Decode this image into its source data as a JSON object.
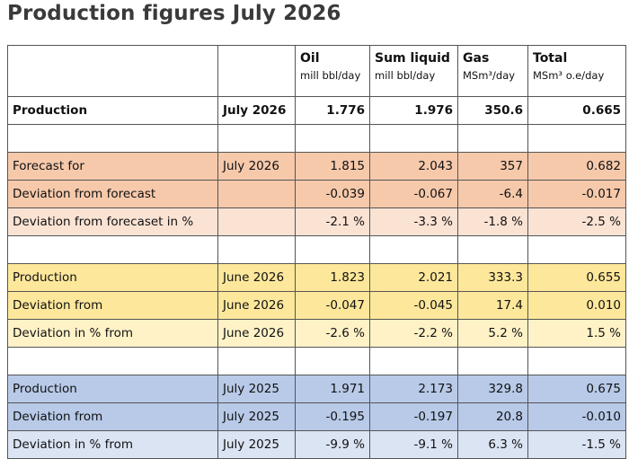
{
  "title": "Production figures July 2026",
  "header": {
    "columns": [
      {
        "name": "Oil",
        "unit": "mill bbl/day"
      },
      {
        "name": "Sum liquid",
        "unit": "mill bbl/day"
      },
      {
        "name": "Gas",
        "unit": "MSm³/day"
      },
      {
        "name": "Total",
        "unit": "MSm³ o.e/day"
      }
    ]
  },
  "rows": [
    {
      "label": "Production",
      "period": "July 2026",
      "oil": "1.776",
      "liquid": "1.976",
      "gas": "350.6",
      "total": "0.665"
    },
    {
      "label": "Forecast for",
      "period": "July 2026",
      "oil": "1.815",
      "liquid": "2.043",
      "gas": "357",
      "total": "0.682"
    },
    {
      "label": "Deviation from forecast",
      "period": "",
      "oil": "-0.039",
      "liquid": "-0.067",
      "gas": "-6.4",
      "total": "-0.017"
    },
    {
      "label": "Deviation from forecaset in %",
      "period": "",
      "oil": "-2.1 %",
      "liquid": "-3.3 %",
      "gas": "-1.8 %",
      "total": "-2.5 %"
    },
    {
      "label": "Production",
      "period": "June 2026",
      "oil": "1.823",
      "liquid": "2.021",
      "gas": "333.3",
      "total": "0.655"
    },
    {
      "label": "Deviation from",
      "period": "June 2026",
      "oil": "-0.047",
      "liquid": "-0.045",
      "gas": "17.4",
      "total": "0.010"
    },
    {
      "label": "Deviation in % from",
      "period": "June 2026",
      "oil": "-2.6 %",
      "liquid": "-2.2 %",
      "gas": "5.2 %",
      "total": "1.5 %"
    },
    {
      "label": "Production",
      "period": "July 2025",
      "oil": "1.971",
      "liquid": "2.173",
      "gas": "329.8",
      "total": "0.675"
    },
    {
      "label": "Deviation from",
      "period": "July 2025",
      "oil": "-0.195",
      "liquid": "-0.197",
      "gas": "20.8",
      "total": "-0.010"
    },
    {
      "label": "Deviation in % from",
      "period": "July 2025",
      "oil": "-9.9 %",
      "liquid": "-9.1 %",
      "gas": "6.3 %",
      "total": "-1.5 %"
    }
  ],
  "colors": {
    "orange_dark": "#f6c9ab",
    "orange_light": "#fbe3d4",
    "yellow_dark": "#fde79b",
    "yellow_light": "#fff2c7",
    "blue_dark": "#b8cae8",
    "blue_light": "#dbe4f3"
  }
}
